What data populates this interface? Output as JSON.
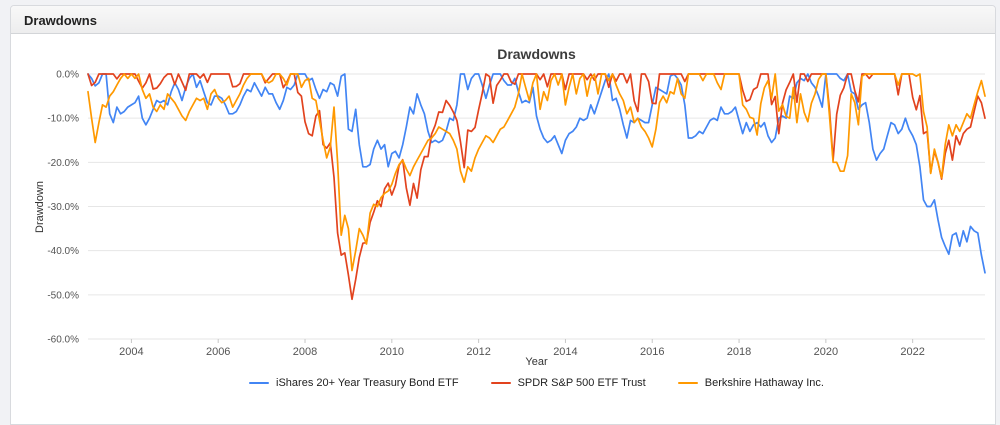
{
  "panel": {
    "title": "Drawdowns"
  },
  "chart_data": {
    "type": "line",
    "title": "Drawdowns",
    "xlabel": "Year",
    "ylabel": "Drawdown",
    "ylim": [
      -60,
      0
    ],
    "grid": true,
    "legend_position": "bottom",
    "x_start": 2003.0,
    "x_end": 2023.6667,
    "points_per_year": 12,
    "y_tick_values": [
      0,
      -10,
      -20,
      -30,
      -40,
      -50,
      -60
    ],
    "y_tick_labels": [
      "0.0%",
      "-10.0%",
      "-20.0%",
      "-30.0%",
      "-40.0%",
      "-50.0%",
      "-60.0%"
    ],
    "x_tick_values": [
      2004,
      2006,
      2008,
      2010,
      2012,
      2014,
      2016,
      2018,
      2020,
      2022
    ],
    "x_tick_labels": [
      "2004",
      "2006",
      "2008",
      "2010",
      "2012",
      "2014",
      "2016",
      "2018",
      "2020",
      "2022"
    ],
    "series": [
      {
        "name": "iShares 20+ Year Treasury Bond ETF",
        "color": "#4285f4",
        "values": [
          0,
          -1,
          -2.7,
          -2,
          0,
          0,
          -9,
          -11,
          -7.5,
          -9,
          -8.5,
          -7.5,
          -7,
          -6.5,
          -5,
          -10,
          -11.5,
          -10,
          -8,
          -6,
          -6.5,
          -6,
          -7,
          -4,
          -2,
          -3.5,
          -6,
          -3,
          -1,
          0,
          -3,
          -1.5,
          -4,
          -6.5,
          -7,
          -5,
          -5,
          -5.5,
          -7,
          -9,
          -9,
          -8.5,
          -7,
          -5,
          -3.5,
          -4,
          -2,
          -3.5,
          -5,
          -3,
          -4.5,
          -4.5,
          -6.5,
          -8,
          -6,
          -3,
          -3.5,
          -2.5,
          0,
          0,
          0,
          -1.5,
          -1,
          -3.5,
          -5.5,
          -3.5,
          -4,
          -2,
          -2.5,
          -5,
          -0.5,
          0,
          -12.5,
          -13,
          -8,
          -16,
          -21,
          -21,
          -20.5,
          -17,
          -15,
          -17,
          -16,
          -21,
          -18,
          -17.5,
          -19,
          -16,
          -12,
          -7.5,
          -9,
          -4.5,
          -7,
          -9,
          -13,
          -15.5,
          -15,
          -15.5,
          -15,
          -13,
          -10,
          -10.5,
          -7,
          0,
          0,
          -3.5,
          -1,
          0,
          0,
          -2.5,
          -5.5,
          -2.5,
          0,
          0,
          0,
          -1.5,
          -2.5,
          -2.5,
          -1,
          -4,
          -6.5,
          -6,
          -6.5,
          -3,
          -9.5,
          -12.5,
          -14.5,
          -15.5,
          -15,
          -14,
          -16,
          -18,
          -15,
          -13.5,
          -13,
          -12,
          -10,
          -10.5,
          -10,
          -7,
          -9,
          -6.5,
          -4,
          -1.5,
          0,
          -6,
          -5.5,
          -8,
          -11.5,
          -14.5,
          -10.5,
          -11,
          -10,
          -10.5,
          -11,
          -11,
          -7,
          -3,
          -3.5,
          -4,
          -4.5,
          -0.5,
          0,
          -1,
          -2.5,
          -7,
          -14.5,
          -14.5,
          -14,
          -13,
          -13.5,
          -12,
          -10.5,
          -10,
          -10.5,
          -7.5,
          -9,
          -9,
          -8.5,
          -7.5,
          -10.5,
          -13.5,
          -11,
          -13,
          -11.5,
          -11,
          -12,
          -11,
          -14,
          -15.5,
          -14.5,
          -10,
          -9.5,
          -10,
          -5,
          -5.5,
          -2,
          -1,
          -1.5,
          0,
          -2,
          -3,
          -5,
          -7.5,
          0,
          0,
          0,
          0,
          -1,
          -1.5,
          0,
          -4,
          -4.5,
          -8,
          -7,
          -6.5,
          -11,
          -17,
          -19.5,
          -18,
          -17,
          -14,
          -11,
          -11.5,
          -13.5,
          -12.5,
          -10,
          -12.5,
          -14,
          -16,
          -21,
          -28.5,
          -30,
          -30,
          -28.5,
          -33,
          -37,
          -39,
          -40.8,
          -36.5,
          -36,
          -39,
          -35.5,
          -38,
          -34.5,
          -35.5,
          -36,
          -41,
          -45
        ]
      },
      {
        "name": "SPDR S&P 500 ETF Trust",
        "color": "#e2431e",
        "values": [
          0,
          -2.6,
          -1.9,
          0,
          0,
          0,
          0,
          0,
          -1.1,
          0,
          0,
          0,
          0,
          0,
          -1.6,
          -3.2,
          -2,
          0,
          -3.4,
          -3.2,
          -2.2,
          -0.8,
          0,
          0,
          -2.4,
          0,
          -1.8,
          -3.7,
          0,
          0,
          0,
          -0.9,
          0,
          -1.9,
          0,
          0,
          0,
          0,
          0,
          0,
          -2.9,
          -2.8,
          -2.2,
          0,
          0,
          0,
          0,
          0,
          0,
          -2,
          -1,
          0,
          0,
          0,
          -3.1,
          -1.8,
          0,
          0,
          -4.2,
          -5,
          -10.8,
          -13.5,
          -14,
          -9.5,
          -8.3,
          -16,
          -16.8,
          -15.6,
          -23.4,
          -36,
          -41,
          -40.5,
          -45.5,
          -51,
          -46.5,
          -41.5,
          -38.3,
          -38.2,
          -33.6,
          -31.3,
          -28.7,
          -30,
          -26,
          -24.7,
          -27.4,
          -25.2,
          -20.7,
          -19.4,
          -25.8,
          -29.7,
          -24.8,
          -28.1,
          -21.7,
          -18.7,
          -18.7,
          -13.6,
          -11.6,
          -8.6,
          -8.7,
          -6,
          -7.1,
          -8.6,
          -10.5,
          -15.4,
          -21.2,
          -12.7,
          -13,
          -12.1,
          -8.1,
          -4.4,
          0,
          -0.6,
          -6.6,
          -2.6,
          -1.4,
          0,
          0,
          -1.8,
          -2.3,
          0,
          0,
          0,
          0,
          0,
          0,
          -1.3,
          0,
          -2.9,
          0,
          0,
          0,
          0,
          -3.5,
          0,
          0,
          0,
          0,
          0,
          -1.3,
          0,
          -1.4,
          0,
          0,
          0,
          -3,
          0,
          -1.6,
          0,
          0,
          -2,
          0,
          -6.1,
          -8.5,
          0,
          0,
          -1.7,
          -6.6,
          -6.7,
          0,
          0,
          0,
          0,
          0,
          0,
          0,
          -1.7,
          0,
          0,
          0,
          0,
          0,
          0,
          0,
          0,
          0,
          0,
          0,
          0,
          0,
          0,
          0,
          -3.7,
          -6.2,
          -5.8,
          -3.5,
          -3,
          0,
          0,
          0,
          -6.9,
          -5.1,
          -13.5,
          -6.6,
          -3.6,
          -1.9,
          0,
          -6.4,
          0,
          0,
          -1.7,
          0,
          0,
          0,
          0,
          0,
          -8,
          -19.5,
          -9.1,
          -4.8,
          -3.1,
          0,
          0,
          -3.8,
          -6.3,
          0,
          0,
          -1,
          0,
          0,
          0,
          0,
          0,
          0,
          0,
          -4.7,
          0,
          0,
          0,
          -5.3,
          -8.1,
          -4.9,
          -13.5,
          -13,
          -22.3,
          -17.5,
          -20,
          -23.8,
          -18,
          -15,
          -19.5,
          -14,
          -16,
          -13.5,
          -12.5,
          -12,
          -8.5,
          -5,
          -6.5,
          -10
        ]
      },
      {
        "name": "Berkshire Hathaway Inc.",
        "color": "#ff9900",
        "values": [
          -4,
          -10,
          -15.5,
          -11,
          -7,
          -7.5,
          -5,
          -4,
          -2.5,
          -1,
          0,
          -1,
          0,
          -1,
          0,
          -3.5,
          -5.5,
          -4.5,
          -7.5,
          -8.5,
          -7,
          -8,
          -4.5,
          -5.5,
          -6.5,
          -8,
          -9.5,
          -10.5,
          -8.5,
          -7,
          -5.5,
          -6,
          -5.5,
          -8,
          -4.5,
          -3.5,
          -5.5,
          -6.5,
          -6,
          -5,
          -7.5,
          -6,
          -4.5,
          -2.5,
          -1,
          0,
          0,
          0,
          0,
          -1.5,
          -2,
          -1.5,
          0,
          0,
          -1,
          -2.5,
          0,
          0,
          0,
          -3,
          -1.5,
          -1,
          -5.5,
          -6,
          -10.5,
          -15,
          -19,
          -16.5,
          -7.5,
          -20,
          -36.5,
          -32,
          -35,
          -44.5,
          -40,
          -35,
          -36.5,
          -38.5,
          -31.5,
          -29.5,
          -30,
          -28,
          -27,
          -26.5,
          -25,
          -22.5,
          -20.5,
          -19.5,
          -21.5,
          -23,
          -21,
          -19.5,
          -18,
          -16.5,
          -15,
          -14.5,
          -13.5,
          -12,
          -12.5,
          -13,
          -13.5,
          -15,
          -17,
          -22,
          -24.5,
          -21,
          -22,
          -19,
          -17,
          -15.5,
          -14,
          -14.5,
          -15.5,
          -14,
          -12.5,
          -12,
          -10.5,
          -9,
          -7.5,
          -4.5,
          0,
          -3,
          -6,
          -2,
          0,
          -8,
          -4,
          -6,
          -1.5,
          0,
          -2.5,
          0,
          -7,
          -3,
          0,
          -4.5,
          -1,
          0,
          -5,
          -1,
          0,
          -4.5,
          0,
          0,
          -1.5,
          0,
          -2.5,
          -4.5,
          -6,
          -9,
          -7.5,
          -11,
          -10,
          -12,
          -13,
          -14.5,
          -16.5,
          -12.5,
          -6.5,
          -5,
          -6.5,
          -4,
          -4.5,
          -1,
          -4.5,
          -5.5,
          0,
          0,
          0,
          0,
          -1.5,
          0,
          0,
          0,
          -2,
          -3.5,
          0,
          0,
          0,
          0,
          0,
          -7,
          -8,
          -9.8,
          -10.1,
          -13.8,
          -6.7,
          -3.1,
          -1.5,
          -5.5,
          0,
          -8.4,
          -6.9,
          -9.6,
          -10,
          -3,
          -11,
          -4.5,
          -8.7,
          -10.8,
          -6.6,
          -4.5,
          -1.2,
          0,
          0,
          -9.5,
          -20,
          -20,
          -22,
          -22,
          -18.5,
          -4.5,
          -6.5,
          -11.5,
          -0.5,
          0,
          0,
          0,
          0,
          0,
          0,
          0,
          0,
          0,
          -2.5,
          0,
          0,
          0,
          0,
          -0.5,
          0,
          -8.5,
          -12,
          -22.5,
          -17,
          -20,
          -23.5,
          -16,
          -11.5,
          -14,
          -11.5,
          -13,
          -11,
          -9,
          -10,
          -7,
          -4,
          -1.5,
          -5
        ]
      }
    ]
  }
}
